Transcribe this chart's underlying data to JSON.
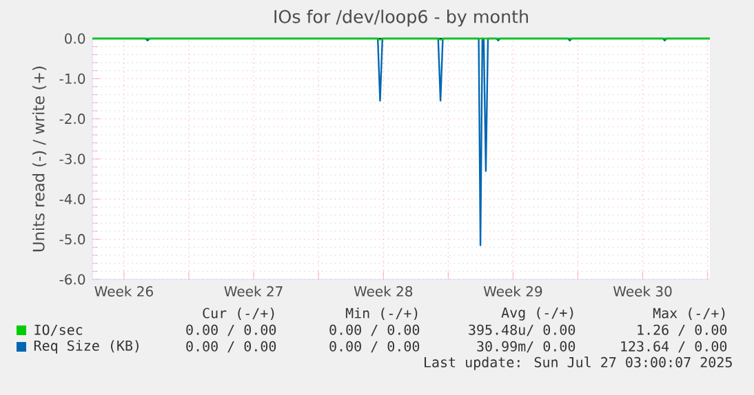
{
  "chart_data": {
    "type": "line",
    "title": "IOs for /dev/loop6 - by month",
    "ylabel": "Units read (-) / write (+)",
    "xlim": [
      "2025-06-23T19:00",
      "2025-07-27T03:00"
    ],
    "ylim": [
      -6,
      0
    ],
    "xticks": [
      {
        "value": "2025-06-25T12:00",
        "label": "Week 26"
      },
      {
        "value": "2025-06-29",
        "label": null
      },
      {
        "value": "2025-07-02T12:00",
        "label": "Week 27"
      },
      {
        "value": "2025-07-06",
        "label": null
      },
      {
        "value": "2025-07-09T12:00",
        "label": "Week 28"
      },
      {
        "value": "2025-07-13",
        "label": null
      },
      {
        "value": "2025-07-16T12:00",
        "label": "Week 29"
      },
      {
        "value": "2025-07-20",
        "label": null
      },
      {
        "value": "2025-07-23T12:00",
        "label": "Week 30"
      },
      {
        "value": "2025-07-27",
        "label": null
      }
    ],
    "yticks": [
      {
        "value": -6,
        "label": "-6.0"
      },
      {
        "value": -5,
        "label": "-5.0"
      },
      {
        "value": -4,
        "label": "-4.0"
      },
      {
        "value": -3,
        "label": "-3.0"
      },
      {
        "value": -2,
        "label": "-2.0"
      },
      {
        "value": -1,
        "label": "-1.0"
      },
      {
        "value": 0,
        "label": "0.0"
      }
    ],
    "grid": true,
    "legend": "bottom",
    "ref_lines": [
      {
        "axis": "y",
        "value": 0,
        "color": "#000000"
      }
    ],
    "series": [
      {
        "name": "IO/sec",
        "color": "#00cc00",
        "x": [
          "2025-06-23T19:00",
          "2025-07-09T04:45",
          "2025-07-09T07:45",
          "2025-07-09T10:45",
          "2025-07-12T11:00",
          "2025-07-12T14:00",
          "2025-07-12T17:00",
          "2025-07-27T03:00"
        ],
        "values": [
          0,
          0,
          -0.03,
          0,
          0,
          -0.03,
          0,
          0
        ]
      },
      {
        "name": "Req Size (KB)",
        "color": "#0066b3",
        "x": [
          "2025-06-23T19:00",
          "2025-06-26T15:30",
          "2025-06-26T18:30",
          "2025-06-26T21:30",
          "2025-07-09T04:45",
          "2025-07-09T07:45",
          "2025-07-09T10:45",
          "2025-07-12T11:00",
          "2025-07-12T14:00",
          "2025-07-12T17:00",
          "2025-07-14T15:30",
          "2025-07-14T17:45",
          "2025-07-14T20:15",
          "2025-07-14T22:00",
          "2025-07-15T00:45",
          "2025-07-15T03:30",
          "2025-07-15T14:30",
          "2025-07-15T16:45",
          "2025-07-15T19:00",
          "2025-07-19T11:00",
          "2025-07-19T13:30",
          "2025-07-19T16:00",
          "2025-07-24T14:00",
          "2025-07-24T16:30",
          "2025-07-24T18:45",
          "2025-07-27T03:00"
        ],
        "values": [
          0,
          0,
          -0.05,
          0,
          0,
          -1.55,
          0,
          0,
          -1.55,
          0,
          0,
          -5.15,
          0,
          0,
          -3.3,
          0,
          0,
          -0.05,
          0,
          0,
          -0.05,
          0,
          0,
          -0.05,
          0,
          0
        ]
      }
    ],
    "annotations": [
      "Cur (-/+)",
      "Min (-/+)",
      "Avg (-/+)",
      "Max (-/+)",
      "0.00 /  0.00",
      "0.00 /  0.00",
      "395.48u/  0.00",
      "1.26 /  0.00",
      "0.00 /  0.00",
      "0.00 /  0.00",
      "30.99m/  0.00",
      "123.64 /  0.00",
      "Last update: Sun Jul 27 03:00:07 2025"
    ]
  }
}
